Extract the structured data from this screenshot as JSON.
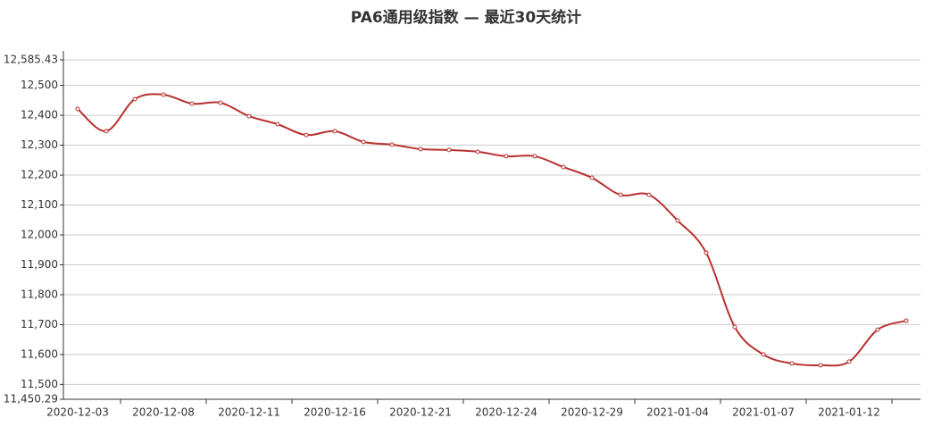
{
  "chart_data": {
    "type": "line",
    "title": "PA6通用级指数  —  最近30天统计",
    "categories": [
      "2020-12-03",
      null,
      null,
      "2020-12-08",
      null,
      null,
      "2020-12-11",
      null,
      null,
      "2020-12-16",
      null,
      null,
      "2020-12-21",
      null,
      null,
      "2020-12-24",
      null,
      null,
      "2020-12-29",
      null,
      null,
      "2021-01-04",
      null,
      null,
      "2021-01-07",
      null,
      null,
      "2021-01-12",
      null,
      null
    ],
    "series": [
      {
        "name": "PA6通用级指数",
        "color": "#b8312f",
        "values": [
          12421,
          12347,
          12454,
          12469,
          12439,
          12442,
          12397,
          12370,
          12334,
          12347,
          12311,
          12302,
          12287,
          12284,
          12278,
          12263,
          12263,
          12227,
          12191,
          12134,
          12134,
          12048,
          11940,
          11692,
          11600,
          11570,
          11564,
          11576,
          11683,
          11713
        ]
      }
    ],
    "ylim": [
      11450.29,
      12585.43
    ],
    "yticks": [
      {
        "value": 11450.29,
        "label": "11,450.29"
      },
      {
        "value": 11500,
        "label": "11,500"
      },
      {
        "value": 11600,
        "label": "11,600"
      },
      {
        "value": 11700,
        "label": "11,700"
      },
      {
        "value": 11800,
        "label": "11,800"
      },
      {
        "value": 11900,
        "label": "11,900"
      },
      {
        "value": 12000,
        "label": "12,000"
      },
      {
        "value": 12100,
        "label": "12,100"
      },
      {
        "value": 12200,
        "label": "12,200"
      },
      {
        "value": 12300,
        "label": "12,300"
      },
      {
        "value": 12400,
        "label": "12,400"
      },
      {
        "value": 12500,
        "label": "12,500"
      },
      {
        "value": 12585.43,
        "label": "12,585.43"
      }
    ],
    "grid": true
  }
}
